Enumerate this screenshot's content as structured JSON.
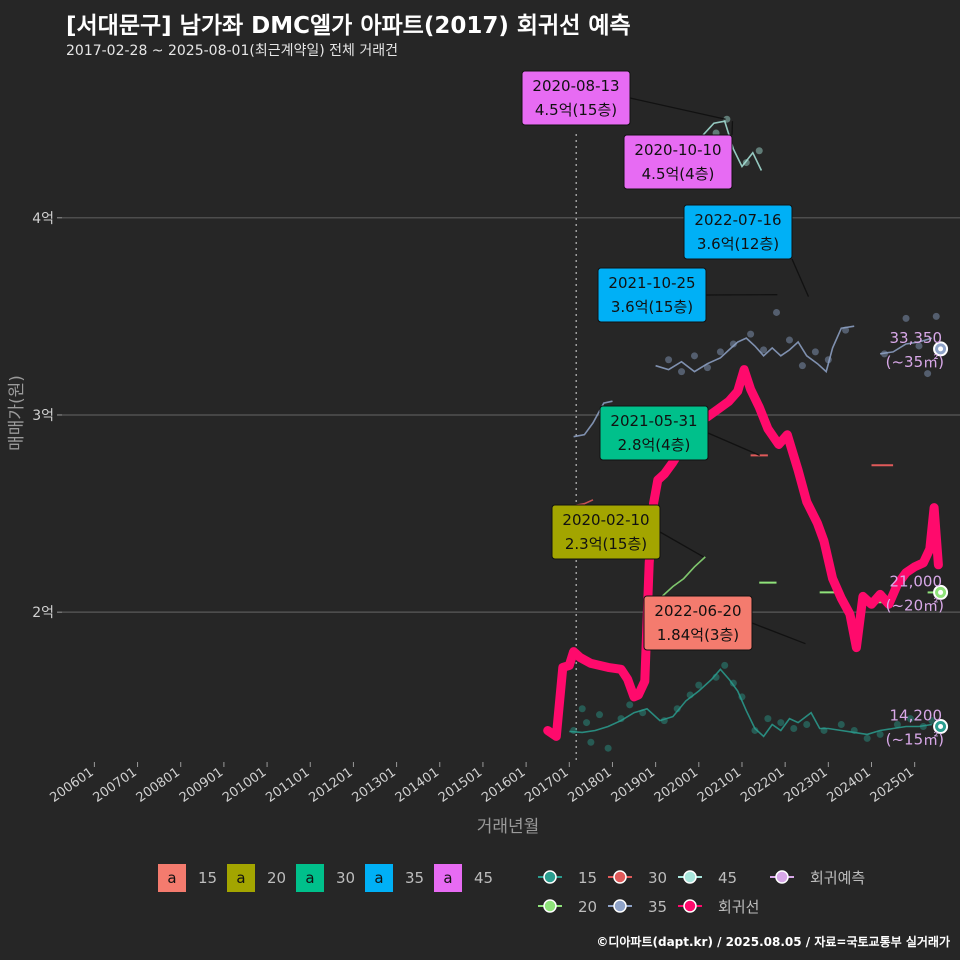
{
  "header": {
    "title": "[서대문구] 남가좌 DMC엘가 아파트(2017) 회귀선 예측",
    "subtitle": "2017-02-28 ~ 2025-08-01(최근계약일) 전체 거래건"
  },
  "footer": {
    "credit": "©디아파트(dapt.kr) / 2025.08.05 / 자료=국토교통부 실거래가"
  },
  "chart_data": {
    "type": "line",
    "xlabel": "거래년월",
    "ylabel": "매매가(원)",
    "x_ticks": [
      "200601",
      "200701",
      "200801",
      "200901",
      "201001",
      "201101",
      "201201",
      "201301",
      "201401",
      "201501",
      "201601",
      "201701",
      "201801",
      "201901",
      "202001",
      "202101",
      "202201",
      "202301",
      "202401",
      "202501"
    ],
    "y_ticks": [
      {
        "value": 20000,
        "label": "2억"
      },
      {
        "value": 30000,
        "label": "3억"
      },
      {
        "value": 40000,
        "label": "4억"
      }
    ],
    "xlim": [
      2005.25,
      2026.05
    ],
    "ylim": [
      12400,
      47800
    ],
    "grid": "horizontal",
    "vline_x": 2017.16,
    "colors": {
      "15": "#2a9d8f",
      "20": "#8fe37a",
      "30": "#e05a5a",
      "35": "#8fa3c8",
      "45": "#a8e6dc",
      "reg": "#ff0a6c",
      "pred": "#d8a8e8"
    },
    "series": [
      {
        "name": "15",
        "points": [
          [
            2017.0,
            13950
          ],
          [
            2017.3,
            13900
          ],
          [
            2017.6,
            14000
          ],
          [
            2017.9,
            14200
          ],
          [
            2018.2,
            14500
          ],
          [
            2018.5,
            14900
          ],
          [
            2018.8,
            15100
          ],
          [
            2019.1,
            14500
          ],
          [
            2019.4,
            14700
          ],
          [
            2019.7,
            15500
          ],
          [
            2020.0,
            16000
          ],
          [
            2020.3,
            16600
          ],
          [
            2020.5,
            17100
          ],
          [
            2020.7,
            16600
          ],
          [
            2020.9,
            16000
          ],
          [
            2021.1,
            15000
          ],
          [
            2021.3,
            14100
          ],
          [
            2021.5,
            13700
          ],
          [
            2021.7,
            14300
          ],
          [
            2021.9,
            14000
          ],
          [
            2022.1,
            14600
          ],
          [
            2022.3,
            14400
          ],
          [
            2022.6,
            14900
          ],
          [
            2022.8,
            14100
          ],
          [
            2023.0,
            14100
          ],
          [
            2023.3,
            14000
          ],
          [
            2023.6,
            13900
          ],
          [
            2023.9,
            13800
          ],
          [
            2024.2,
            14000
          ],
          [
            2024.5,
            14100
          ],
          [
            2024.8,
            14200
          ],
          [
            2025.1,
            14200
          ],
          [
            2025.4,
            14300
          ]
        ]
      },
      {
        "name": "20",
        "points": [
          [
            2019.15,
            20800
          ],
          [
            2019.4,
            21300
          ],
          [
            2019.65,
            21700
          ],
          [
            2019.9,
            22300
          ],
          [
            2020.15,
            22800
          ]
        ]
      },
      {
        "name": "30",
        "points": [
          [
            2017.1,
            25400
          ],
          [
            2017.35,
            25500
          ],
          [
            2017.55,
            25700
          ]
        ]
      },
      {
        "name": "35",
        "points": [
          [
            2017.1,
            28900
          ],
          [
            2017.35,
            29000
          ],
          [
            2017.55,
            29600
          ],
          [
            2017.8,
            30600
          ],
          [
            2018.0,
            30700
          ]
        ]
      },
      {
        "name": "35",
        "points": [
          [
            2019.0,
            32500
          ],
          [
            2019.3,
            32300
          ],
          [
            2019.6,
            32700
          ],
          [
            2019.9,
            32200
          ],
          [
            2020.2,
            32600
          ],
          [
            2020.5,
            32900
          ],
          [
            2020.7,
            33300
          ],
          [
            2020.9,
            33700
          ],
          [
            2021.1,
            33900
          ],
          [
            2021.3,
            33500
          ],
          [
            2021.5,
            33000
          ],
          [
            2021.7,
            33400
          ],
          [
            2021.9,
            33000
          ],
          [
            2022.1,
            33300
          ],
          [
            2022.3,
            33700
          ],
          [
            2022.5,
            33000
          ],
          [
            2022.75,
            32600
          ],
          [
            2022.95,
            32200
          ],
          [
            2023.1,
            33400
          ],
          [
            2023.3,
            34400
          ],
          [
            2023.6,
            34500
          ]
        ]
      },
      {
        "name": "35",
        "points": [
          [
            2024.2,
            33100
          ],
          [
            2024.5,
            33200
          ],
          [
            2024.8,
            33600
          ],
          [
            2025.1,
            33700
          ],
          [
            2025.4,
            33900
          ]
        ]
      },
      {
        "name": "45",
        "points": [
          [
            2019.0,
            42300
          ],
          [
            2019.3,
            42600
          ],
          [
            2019.6,
            43300
          ],
          [
            2019.85,
            43500
          ],
          [
            2020.1,
            44200
          ],
          [
            2020.35,
            44800
          ],
          [
            2020.6,
            44900
          ],
          [
            2020.8,
            43500
          ],
          [
            2021.0,
            42600
          ],
          [
            2021.25,
            43300
          ],
          [
            2021.45,
            42400
          ]
        ]
      }
    ],
    "regression": [
      [
        2016.5,
        14000
      ],
      [
        2016.7,
        13700
      ],
      [
        2016.85,
        17200
      ],
      [
        2017.0,
        17300
      ],
      [
        2017.1,
        18000
      ],
      [
        2017.25,
        17700
      ],
      [
        2017.5,
        17400
      ],
      [
        2017.9,
        17200
      ],
      [
        2018.2,
        17100
      ],
      [
        2018.35,
        16600
      ],
      [
        2018.5,
        15700
      ],
      [
        2018.6,
        15800
      ],
      [
        2018.75,
        16500
      ],
      [
        2018.85,
        22500
      ],
      [
        2018.95,
        25500
      ],
      [
        2019.05,
        26700
      ],
      [
        2019.2,
        27000
      ],
      [
        2019.4,
        27600
      ],
      [
        2019.6,
        28300
      ],
      [
        2019.8,
        29500
      ],
      [
        2020.0,
        29700
      ],
      [
        2020.2,
        29900
      ],
      [
        2020.45,
        30300
      ],
      [
        2020.7,
        30700
      ],
      [
        2020.9,
        31200
      ],
      [
        2021.05,
        32300
      ],
      [
        2021.2,
        31300
      ],
      [
        2021.4,
        30400
      ],
      [
        2021.6,
        29300
      ],
      [
        2021.85,
        28500
      ],
      [
        2022.05,
        29000
      ],
      [
        2022.3,
        27200
      ],
      [
        2022.5,
        25600
      ],
      [
        2022.75,
        24500
      ],
      [
        2022.9,
        23600
      ],
      [
        2023.1,
        21700
      ],
      [
        2023.3,
        20700
      ],
      [
        2023.5,
        19900
      ],
      [
        2023.65,
        18200
      ],
      [
        2023.8,
        20800
      ],
      [
        2024.0,
        20400
      ],
      [
        2024.2,
        20900
      ],
      [
        2024.4,
        20400
      ],
      [
        2024.6,
        21400
      ],
      [
        2024.8,
        22000
      ],
      [
        2025.0,
        22300
      ],
      [
        2025.2,
        22500
      ],
      [
        2025.35,
        23200
      ],
      [
        2025.45,
        25300
      ],
      [
        2025.55,
        22400
      ]
    ],
    "predictions": [
      {
        "name": "회귀예측",
        "x": 2025.6,
        "y": 33350,
        "series": "35",
        "value_label": "33,350",
        "area_label": "(~35㎡)"
      },
      {
        "name": "회귀예측",
        "x": 2025.6,
        "y": 21000,
        "series": "20",
        "value_label": "21,000",
        "area_label": "(~20㎡)"
      },
      {
        "name": "회귀예측",
        "x": 2025.6,
        "y": 14200,
        "series": "15",
        "value_label": "14,200",
        "area_label": "(~15㎡)"
      }
    ],
    "segments": [
      {
        "series": "30",
        "x1": 2021.2,
        "x2": 2021.6,
        "y": 27950
      },
      {
        "series": "30",
        "x1": 2024.0,
        "x2": 2024.5,
        "y": 27450
      },
      {
        "series": "20",
        "x1": 2021.4,
        "x2": 2021.8,
        "y": 21500
      },
      {
        "series": "20",
        "x1": 2022.8,
        "x2": 2023.2,
        "y": 21000
      },
      {
        "series": "20",
        "x1": 2023.8,
        "x2": 2024.3,
        "y": 20500
      },
      {
        "series": "20",
        "x1": 2025.3,
        "x2": 2025.55,
        "y": 21000
      }
    ],
    "scatter": {
      "15": [
        [
          2017.1,
          14000
        ],
        [
          2017.3,
          15100
        ],
        [
          2017.4,
          14400
        ],
        [
          2017.5,
          13400
        ],
        [
          2017.7,
          14800
        ],
        [
          2017.9,
          13100
        ],
        [
          2018.2,
          14600
        ],
        [
          2018.4,
          15300
        ],
        [
          2018.7,
          14900
        ],
        [
          2019.2,
          14500
        ],
        [
          2019.5,
          15100
        ],
        [
          2019.8,
          15800
        ],
        [
          2020.0,
          16300
        ],
        [
          2020.4,
          16700
        ],
        [
          2020.6,
          17300
        ],
        [
          2020.8,
          16400
        ],
        [
          2021.0,
          15700
        ],
        [
          2021.3,
          14000
        ],
        [
          2021.6,
          14600
        ],
        [
          2021.9,
          14400
        ],
        [
          2022.2,
          14100
        ],
        [
          2022.5,
          14300
        ],
        [
          2022.9,
          14000
        ],
        [
          2023.3,
          14300
        ],
        [
          2023.6,
          14000
        ],
        [
          2023.9,
          13600
        ],
        [
          2024.2,
          13800
        ],
        [
          2024.6,
          14300
        ],
        [
          2024.9,
          14600
        ],
        [
          2025.2,
          14200
        ],
        [
          2025.4,
          14500
        ]
      ],
      "35": [
        [
          2019.3,
          32800
        ],
        [
          2019.6,
          32200
        ],
        [
          2019.9,
          33000
        ],
        [
          2020.2,
          32400
        ],
        [
          2020.5,
          33200
        ],
        [
          2020.8,
          33600
        ],
        [
          2021.2,
          34100
        ],
        [
          2021.5,
          33300
        ],
        [
          2021.8,
          35200
        ],
        [
          2022.1,
          33800
        ],
        [
          2022.4,
          32500
        ],
        [
          2022.7,
          33200
        ],
        [
          2023.0,
          32800
        ],
        [
          2023.4,
          34300
        ],
        [
          2024.3,
          33100
        ],
        [
          2024.8,
          34900
        ],
        [
          2025.1,
          33500
        ],
        [
          2025.3,
          32100
        ],
        [
          2025.5,
          35000
        ]
      ],
      "45": [
        [
          2019.2,
          43000
        ],
        [
          2019.6,
          42800
        ],
        [
          2020.0,
          43800
        ],
        [
          2020.4,
          44300
        ],
        [
          2020.65,
          45000
        ],
        [
          2021.1,
          42800
        ],
        [
          2021.4,
          43400
        ]
      ]
    },
    "annotations": [
      {
        "date": "2020-08-13",
        "price": "4.5억(15층)",
        "series": "45",
        "x": 2020.62,
        "y": 45000
      },
      {
        "date": "2020-10-10",
        "price": "4.5억(4층)",
        "series": "45",
        "x": 2020.78,
        "y": 44900
      },
      {
        "date": "2022-07-16",
        "price": "3.6억(12층)",
        "series": "35",
        "x": 2022.54,
        "y": 36000
      },
      {
        "date": "2021-10-25",
        "price": "3.6억(15층)",
        "series": "35",
        "x": 2021.82,
        "y": 36100
      },
      {
        "date": "2021-05-31",
        "price": "2.8억(4층)",
        "series": "30",
        "x": 2021.41,
        "y": 27950
      },
      {
        "date": "2020-02-10",
        "price": "2.3억(15층)",
        "series": "20",
        "x": 2020.11,
        "y": 22800
      },
      {
        "date": "2022-06-20",
        "price": "1.84억(3층)",
        "series": "15",
        "x": 2022.47,
        "y": 18400
      }
    ],
    "legend": {
      "label_items": [
        {
          "name": "15",
          "color": "#f47b6e"
        },
        {
          "name": "20",
          "color": "#a3a500"
        },
        {
          "name": "30",
          "color": "#00c08b"
        },
        {
          "name": "35",
          "color": "#00b0f6"
        },
        {
          "name": "45",
          "color": "#e76bf3"
        }
      ],
      "label_glyph": "a",
      "line_items": [
        {
          "name": "15",
          "color": "#2a9d8f"
        },
        {
          "name": "30",
          "color": "#e05a5a"
        },
        {
          "name": "45",
          "color": "#a8e6dc"
        },
        {
          "name": "회귀예측",
          "color": "#d8a8e8"
        },
        {
          "name": "20",
          "color": "#8fe37a"
        },
        {
          "name": "35",
          "color": "#8fa3c8"
        },
        {
          "name": "회귀선",
          "color": "#ff0a6c"
        }
      ]
    }
  }
}
